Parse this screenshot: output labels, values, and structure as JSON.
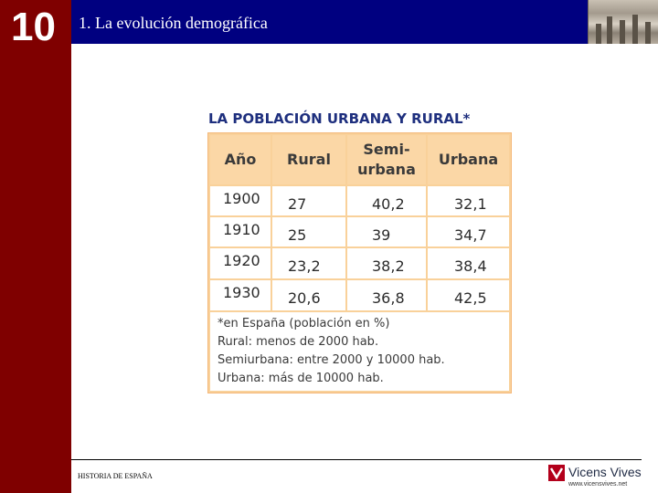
{
  "chapter": {
    "number": "10"
  },
  "header": {
    "title": "1. La evolución demográfica",
    "photo_icon": "historical-photo"
  },
  "table": {
    "title": "LA POBLACIÓN URBANA Y RURAL*",
    "headers": [
      "Año",
      "Rural",
      "Semi-\nurbana",
      "Urbana"
    ],
    "rows": [
      {
        "year": "1900",
        "rural": "27",
        "semiurbana": "40,2",
        "urbana": "32,1"
      },
      {
        "year": "1910",
        "rural": "25",
        "semiurbana": "39",
        "urbana": "34,7"
      },
      {
        "year": "1920",
        "rural": "23,2",
        "semiurbana": "38,2",
        "urbana": "38,4"
      },
      {
        "year": "1930",
        "rural": "20,6",
        "semiurbana": "36,8",
        "urbana": "42,5"
      }
    ],
    "notes": [
      "*en España (población en %)",
      "Rural: menos de 2000 hab.",
      "Semiurbana: entre 2000 y 10000 hab.",
      "Urbana: más de 10000 hab."
    ]
  },
  "footer": {
    "text": "HISTORIA DE ESPAÑA",
    "logo_name": "Vicens Vives",
    "logo_url": "www.vicensvives.net",
    "brand_color": "#b3001b"
  },
  "colors": {
    "sidebar": "#7f0000",
    "header": "#000080",
    "table_title": "#1e2f7e",
    "table_frame": "#f9d19a"
  }
}
